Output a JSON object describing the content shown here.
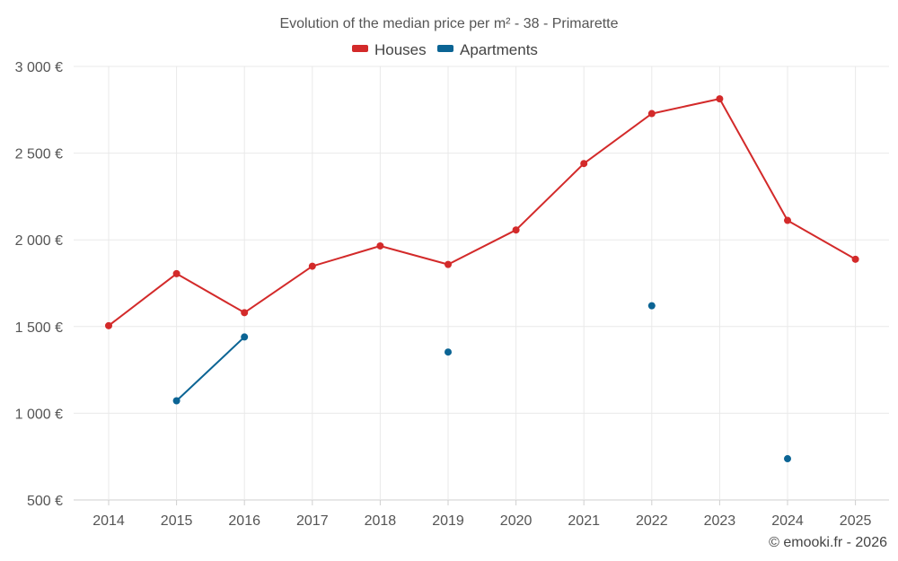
{
  "chart_data": {
    "type": "line",
    "title": "Evolution of the median price per m² - 38 - Primarette",
    "categories": [
      "2014",
      "2015",
      "2016",
      "2017",
      "2018",
      "2019",
      "2020",
      "2021",
      "2022",
      "2023",
      "2024",
      "2025"
    ],
    "ylim": [
      500,
      3000
    ],
    "y_ticks": [
      500,
      1000,
      1500,
      2000,
      2500,
      3000
    ],
    "y_tick_labels": [
      "500 €",
      "1 000 €",
      "1 500 €",
      "2 000 €",
      "2 500 €",
      "3 000 €"
    ],
    "grid": true,
    "legend_position": "top-center",
    "series": [
      {
        "name": "Houses",
        "color": "#d32a2a",
        "values": [
          1505,
          1805,
          1580,
          1848,
          1965,
          1858,
          2057,
          2440,
          2728,
          2813,
          2112,
          1888
        ]
      },
      {
        "name": "Apartments",
        "color": "#0b6494",
        "values": [
          null,
          1072,
          1440,
          null,
          null,
          1353,
          null,
          null,
          1620,
          null,
          738,
          null
        ]
      }
    ]
  },
  "credit": "© emooki.fr - 2026"
}
